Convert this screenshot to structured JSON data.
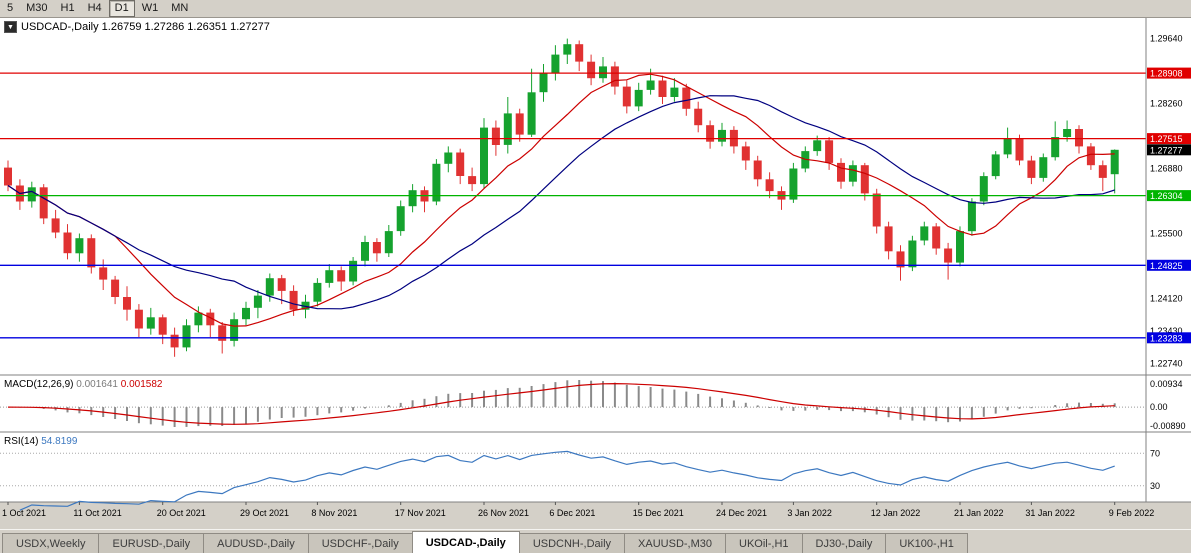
{
  "toolbar": {
    "timeframes": [
      {
        "label": "5",
        "active": false
      },
      {
        "label": "M30",
        "active": false
      },
      {
        "label": "H1",
        "active": false
      },
      {
        "label": "H4",
        "active": false
      },
      {
        "label": "D1",
        "active": true
      },
      {
        "label": "W1",
        "active": false
      },
      {
        "label": "MN",
        "active": false
      }
    ]
  },
  "chart_title": {
    "dropdown_icon": "▼",
    "symbol": "USDCAD-,Daily",
    "open": "1.26759",
    "high": "1.27286",
    "low": "1.26351",
    "close": "1.27277"
  },
  "colors": {
    "chrome": "#d4d0c8",
    "chart_bg": "#ffffff",
    "bull": "#15a22e",
    "bear": "#e03232",
    "ma_fast": "#cc0000",
    "ma_slow": "#000080",
    "macd_hist": "#8a8a8a",
    "macd_signal": "#cc0000",
    "rsi_line": "#3c78c0"
  },
  "hlines": [
    {
      "price": 1.28908,
      "label": "1.28908",
      "color": "#e00000"
    },
    {
      "price": 1.27515,
      "label": "1.27515",
      "color": "#e00000"
    },
    {
      "price": 1.26304,
      "label": "1.26304",
      "color": "#00b400"
    },
    {
      "price": 1.24825,
      "label": "1.24825",
      "color": "#0000e0"
    },
    {
      "price": 1.23283,
      "label": "1.23283",
      "color": "#0000e0"
    }
  ],
  "current_price": {
    "price": 1.27277,
    "label": "1.27277",
    "badge_color": "#000000"
  },
  "price_axis": {
    "ticks": [
      {
        "label": "1.29640",
        "value": 1.2964
      },
      {
        "label": "1.28260",
        "value": 1.2826
      },
      {
        "label": "1.26880",
        "value": 1.2688
      },
      {
        "label": "1.25500",
        "value": 1.255
      },
      {
        "label": "1.24120",
        "value": 1.2412
      },
      {
        "label": "1.23430",
        "value": 1.2343
      },
      {
        "label": "1.22740",
        "value": 1.2274
      }
    ]
  },
  "macd_panel": {
    "label": "MACD(12,26,9)",
    "values": [
      "0.001641",
      "0.001582"
    ],
    "axis": [
      "0.00934",
      "0.00",
      "-0.00890"
    ],
    "params": {
      "fast": 12,
      "slow": 26,
      "signal": 9
    }
  },
  "rsi_panel": {
    "label": "RSI(14)",
    "value": "54.8199",
    "period": 14,
    "levels": [
      70,
      30
    ],
    "axis": [
      "70",
      "30"
    ]
  },
  "tabs": {
    "items": [
      {
        "label": "USDX,Weekly",
        "active": false
      },
      {
        "label": "EURUSD-,Daily",
        "active": false
      },
      {
        "label": "AUDUSD-,Daily",
        "active": false
      },
      {
        "label": "USDCHF-,Daily",
        "active": false
      },
      {
        "label": "USDCAD-,Daily",
        "active": true
      },
      {
        "label": "USDCNH-,Daily",
        "active": false
      },
      {
        "label": "XAUUSD-,M30",
        "active": false
      },
      {
        "label": "UKOil-,H1",
        "active": false
      },
      {
        "label": "DJ30-,Daily",
        "active": false
      },
      {
        "label": "UK100-,H1",
        "active": false
      }
    ]
  },
  "chart_data": {
    "type": "candlestick",
    "symbol": "USDCAD-",
    "timeframe": "Daily",
    "y_range": [
      1.226,
      1.2995
    ],
    "overlays": [
      {
        "name": "ma-fast-line",
        "type": "sma",
        "period": 10,
        "color": "#cc0000"
      },
      {
        "name": "ma-slow-line",
        "type": "sma",
        "period": 20,
        "color": "#000080"
      }
    ],
    "x_labels": [
      {
        "index": 0,
        "label": "1 Oct 2021"
      },
      {
        "index": 6,
        "label": "11 Oct 2021"
      },
      {
        "index": 13,
        "label": "20 Oct 2021"
      },
      {
        "index": 20,
        "label": "29 Oct 2021"
      },
      {
        "index": 26,
        "label": "8 Nov 2021"
      },
      {
        "index": 33,
        "label": "17 Nov 2021"
      },
      {
        "index": 40,
        "label": "26 Nov 2021"
      },
      {
        "index": 46,
        "label": "6 Dec 2021"
      },
      {
        "index": 53,
        "label": "15 Dec 2021"
      },
      {
        "index": 60,
        "label": "24 Dec 2021"
      },
      {
        "index": 66,
        "label": "3 Jan 2022"
      },
      {
        "index": 73,
        "label": "12 Jan 2022"
      },
      {
        "index": 80,
        "label": "21 Jan 2022"
      },
      {
        "index": 86,
        "label": "31 Jan 2022"
      },
      {
        "index": 93,
        "label": "9 Feb 2022"
      }
    ],
    "candles": [
      [
        1.269,
        1.2705,
        1.264,
        1.2652
      ],
      [
        1.2652,
        1.2665,
        1.26,
        1.2618
      ],
      [
        1.2618,
        1.266,
        1.2605,
        1.2648
      ],
      [
        1.2648,
        1.2655,
        1.257,
        1.2582
      ],
      [
        1.2582,
        1.26,
        1.254,
        1.2552
      ],
      [
        1.2552,
        1.257,
        1.2495,
        1.2508
      ],
      [
        1.2508,
        1.255,
        1.249,
        1.254
      ],
      [
        1.254,
        1.2548,
        1.2465,
        1.2478
      ],
      [
        1.2478,
        1.2495,
        1.243,
        1.2452
      ],
      [
        1.2452,
        1.246,
        1.24,
        1.2415
      ],
      [
        1.2415,
        1.2438,
        1.2365,
        1.2388
      ],
      [
        1.2388,
        1.24,
        1.233,
        1.2348
      ],
      [
        1.2348,
        1.2392,
        1.2335,
        1.2372
      ],
      [
        1.2372,
        1.2378,
        1.2315,
        1.2335
      ],
      [
        1.2335,
        1.235,
        1.2288,
        1.2308
      ],
      [
        1.2308,
        1.2368,
        1.23,
        1.2355
      ],
      [
        1.2355,
        1.2395,
        1.234,
        1.2382
      ],
      [
        1.2382,
        1.239,
        1.233,
        1.2355
      ],
      [
        1.2355,
        1.2362,
        1.2295,
        1.2322
      ],
      [
        1.2322,
        1.2382,
        1.231,
        1.2368
      ],
      [
        1.2368,
        1.2405,
        1.2355,
        1.2392
      ],
      [
        1.2392,
        1.243,
        1.237,
        1.2418
      ],
      [
        1.2418,
        1.2465,
        1.2405,
        1.2455
      ],
      [
        1.2455,
        1.2462,
        1.24,
        1.2428
      ],
      [
        1.2428,
        1.244,
        1.2375,
        1.2388
      ],
      [
        1.2388,
        1.242,
        1.237,
        1.2405
      ],
      [
        1.2405,
        1.2455,
        1.2395,
        1.2445
      ],
      [
        1.2445,
        1.2485,
        1.2435,
        1.2472
      ],
      [
        1.2472,
        1.248,
        1.2428,
        1.2448
      ],
      [
        1.2448,
        1.25,
        1.244,
        1.2492
      ],
      [
        1.2492,
        1.2545,
        1.248,
        1.2532
      ],
      [
        1.2532,
        1.254,
        1.249,
        1.2508
      ],
      [
        1.2508,
        1.2568,
        1.25,
        1.2555
      ],
      [
        1.2555,
        1.262,
        1.2545,
        1.2608
      ],
      [
        1.2608,
        1.2655,
        1.2595,
        1.2642
      ],
      [
        1.2642,
        1.265,
        1.2595,
        1.2618
      ],
      [
        1.2618,
        1.2708,
        1.261,
        1.2698
      ],
      [
        1.2698,
        1.2735,
        1.268,
        1.2722
      ],
      [
        1.2722,
        1.273,
        1.2655,
        1.2672
      ],
      [
        1.2672,
        1.269,
        1.264,
        1.2655
      ],
      [
        1.2655,
        1.2795,
        1.2645,
        1.2775
      ],
      [
        1.2775,
        1.279,
        1.2715,
        1.2738
      ],
      [
        1.2738,
        1.284,
        1.272,
        1.2805
      ],
      [
        1.2805,
        1.2815,
        1.2745,
        1.276
      ],
      [
        1.276,
        1.29,
        1.2755,
        1.285
      ],
      [
        1.285,
        1.291,
        1.283,
        1.289
      ],
      [
        1.289,
        1.295,
        1.2875,
        1.293
      ],
      [
        1.293,
        1.2964,
        1.291,
        1.2952
      ],
      [
        1.2952,
        1.296,
        1.2895,
        1.2915
      ],
      [
        1.2915,
        1.293,
        1.2865,
        1.288
      ],
      [
        1.288,
        1.2925,
        1.287,
        1.2905
      ],
      [
        1.2905,
        1.2915,
        1.2845,
        1.2862
      ],
      [
        1.2862,
        1.2875,
        1.2805,
        1.282
      ],
      [
        1.282,
        1.287,
        1.281,
        1.2855
      ],
      [
        1.2855,
        1.29,
        1.2845,
        1.2875
      ],
      [
        1.2875,
        1.2885,
        1.2825,
        1.284
      ],
      [
        1.284,
        1.288,
        1.283,
        1.286
      ],
      [
        1.286,
        1.2868,
        1.28,
        1.2815
      ],
      [
        1.2815,
        1.283,
        1.2765,
        1.278
      ],
      [
        1.278,
        1.279,
        1.273,
        1.2745
      ],
      [
        1.2745,
        1.2785,
        1.2735,
        1.277
      ],
      [
        1.277,
        1.2778,
        1.272,
        1.2735
      ],
      [
        1.2735,
        1.2745,
        1.2685,
        1.2705
      ],
      [
        1.2705,
        1.2715,
        1.265,
        1.2665
      ],
      [
        1.2665,
        1.268,
        1.2625,
        1.264
      ],
      [
        1.264,
        1.265,
        1.26,
        1.2622
      ],
      [
        1.2622,
        1.27,
        1.2615,
        1.2688
      ],
      [
        1.2688,
        1.2735,
        1.268,
        1.2725
      ],
      [
        1.2725,
        1.2758,
        1.2715,
        1.2748
      ],
      [
        1.2748,
        1.2755,
        1.2685,
        1.27
      ],
      [
        1.27,
        1.271,
        1.2645,
        1.266
      ],
      [
        1.266,
        1.2705,
        1.265,
        1.2695
      ],
      [
        1.2695,
        1.27,
        1.262,
        1.2635
      ],
      [
        1.2635,
        1.2645,
        1.255,
        1.2565
      ],
      [
        1.2565,
        1.2575,
        1.2495,
        1.2512
      ],
      [
        1.2512,
        1.2525,
        1.245,
        1.2478
      ],
      [
        1.2478,
        1.2545,
        1.247,
        1.2535
      ],
      [
        1.2535,
        1.2575,
        1.2525,
        1.2565
      ],
      [
        1.2565,
        1.2572,
        1.2505,
        1.2518
      ],
      [
        1.2518,
        1.253,
        1.2452,
        1.2488
      ],
      [
        1.2488,
        1.2565,
        1.248,
        1.2555
      ],
      [
        1.2555,
        1.2625,
        1.2545,
        1.2618
      ],
      [
        1.2618,
        1.268,
        1.261,
        1.2672
      ],
      [
        1.2672,
        1.2725,
        1.2665,
        1.2718
      ],
      [
        1.2718,
        1.2775,
        1.271,
        1.2752
      ],
      [
        1.2752,
        1.276,
        1.2695,
        1.2705
      ],
      [
        1.2705,
        1.2715,
        1.2655,
        1.2668
      ],
      [
        1.2668,
        1.272,
        1.266,
        1.2712
      ],
      [
        1.2712,
        1.2788,
        1.2705,
        1.2755
      ],
      [
        1.2755,
        1.279,
        1.2745,
        1.2772
      ],
      [
        1.2772,
        1.278,
        1.272,
        1.2735
      ],
      [
        1.2735,
        1.2742,
        1.2685,
        1.2695
      ],
      [
        1.2695,
        1.2705,
        1.264,
        1.2668
      ],
      [
        1.26759,
        1.27286,
        1.26351,
        1.27277
      ]
    ]
  }
}
